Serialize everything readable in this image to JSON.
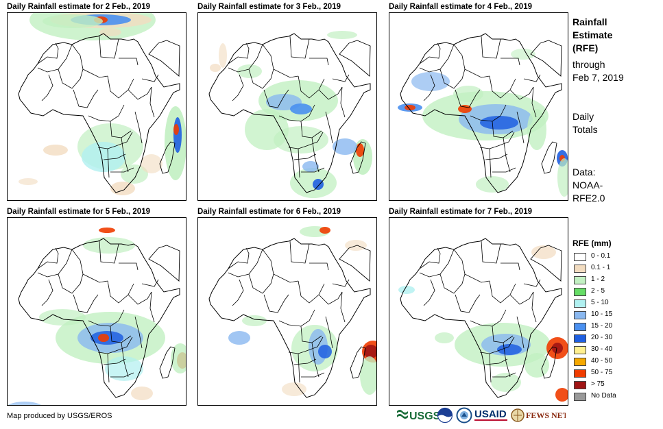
{
  "panels": [
    {
      "title": "Daily Rainfall estimate for 2 Feb., 2019"
    },
    {
      "title": "Daily Rainfall estimate for 3 Feb., 2019"
    },
    {
      "title": "Daily Rainfall estimate for 4 Feb., 2019"
    },
    {
      "title": "Daily Rainfall estimate for 5 Feb., 2019"
    },
    {
      "title": "Daily Rainfall estimate for 6 Feb., 2019"
    },
    {
      "title": "Daily Rainfall estimate for 7 Feb., 2019"
    }
  ],
  "side": {
    "title_lines": [
      "Rainfall",
      "Estimate",
      "(RFE)"
    ],
    "through_lines": [
      "through",
      "Feb 7, 2019"
    ],
    "totals_lines": [
      "Daily",
      "Totals"
    ],
    "data_lines": [
      "Data:",
      "NOAA-",
      "RFE2.0"
    ]
  },
  "legend": {
    "title": "RFE (mm)",
    "items": [
      {
        "label": "0 - 0.1",
        "color": "#ffffff"
      },
      {
        "label": "0.1 - 1",
        "color": "#f2dcc0"
      },
      {
        "label": "1 - 2",
        "color": "#c2f0c2"
      },
      {
        "label": "2 - 5",
        "color": "#66dd66"
      },
      {
        "label": "5 - 10",
        "color": "#b0f0f0"
      },
      {
        "label": "10 - 15",
        "color": "#8ab8f0"
      },
      {
        "label": "15 - 20",
        "color": "#4a90f0"
      },
      {
        "label": "20 - 30",
        "color": "#1f5fe0"
      },
      {
        "label": "30 - 40",
        "color": "#fff090"
      },
      {
        "label": "40 - 50",
        "color": "#f5a800"
      },
      {
        "label": "50 - 75",
        "color": "#f03c00"
      },
      {
        "label": "> 75",
        "color": "#a01414"
      },
      {
        "label": "No Data",
        "color": "#999999"
      }
    ]
  },
  "footer": {
    "credit": "Map produced by USGS/EROS"
  },
  "logos": {
    "usgs": "USGS",
    "usaid": "USAID",
    "fewsnet": "FEWS NET"
  },
  "chart_data": {
    "type": "heatmap",
    "variable": "Daily rainfall estimate",
    "unit": "mm",
    "dates": [
      "2 Feb., 2019",
      "3 Feb., 2019",
      "4 Feb., 2019",
      "5 Feb., 2019",
      "6 Feb., 2019",
      "7 Feb., 2019"
    ],
    "legend_classes": [
      "0 - 0.1",
      "0.1 - 1",
      "1 - 2",
      "2 - 5",
      "5 - 10",
      "10 - 15",
      "15 - 20",
      "20 - 30",
      "30 - 40",
      "40 - 50",
      "50 - 75",
      "> 75",
      "No Data"
    ]
  }
}
